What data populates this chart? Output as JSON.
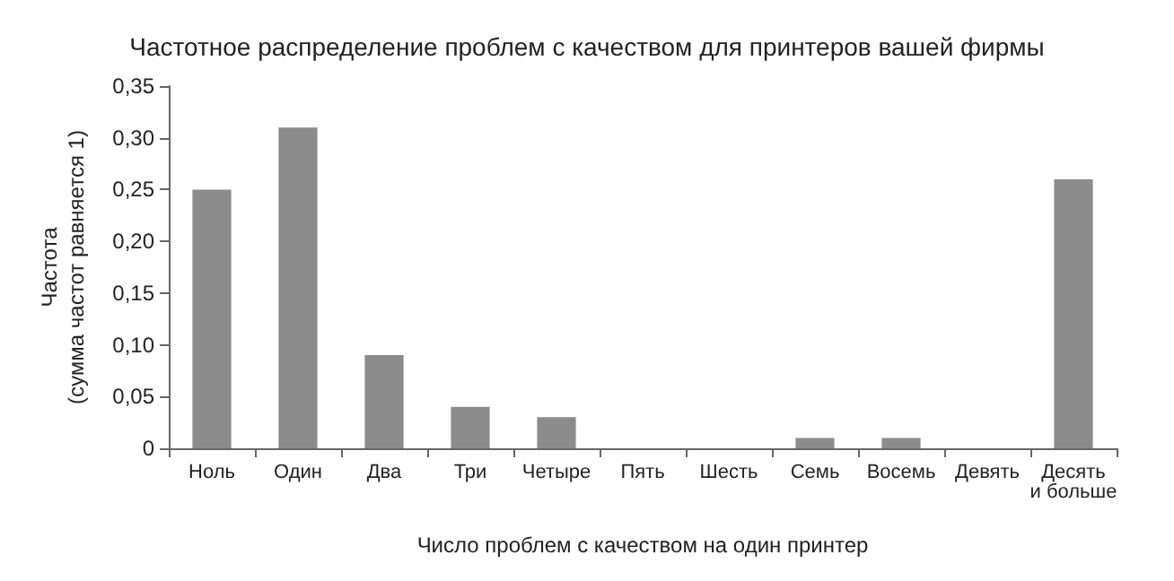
{
  "chart_data": {
    "type": "bar",
    "title": "Частотное распределение проблем с качеством для принтеров вашей фирмы",
    "xlabel": "Число проблем с качеством на один принтер",
    "ylabel": "Частота\n(сумма частот равняется 1)",
    "categories": [
      "Ноль",
      "Один",
      "Два",
      "Три",
      "Четыре",
      "Пять",
      "Шесть",
      "Семь",
      "Восемь",
      "Девять",
      "Десять\nи больше"
    ],
    "values": [
      0.25,
      0.31,
      0.09,
      0.04,
      0.03,
      0,
      0,
      0.01,
      0.01,
      0,
      0.26
    ],
    "color": "#8c8c8c",
    "ylim": [
      0,
      0.35
    ],
    "yticks": [
      0,
      {
        "value": 0.05,
        "label": "0,05"
      },
      {
        "value": 0.1,
        "label": "0,10"
      },
      {
        "value": 0.15,
        "label": "0,15"
      },
      {
        "value": 0.2,
        "label": "0,20"
      },
      {
        "value": 0.25,
        "label": "0,25"
      },
      {
        "value": 0.3,
        "label": "0,30"
      },
      {
        "value": 0.35,
        "label": "0,35"
      }
    ],
    "grid": false
  }
}
